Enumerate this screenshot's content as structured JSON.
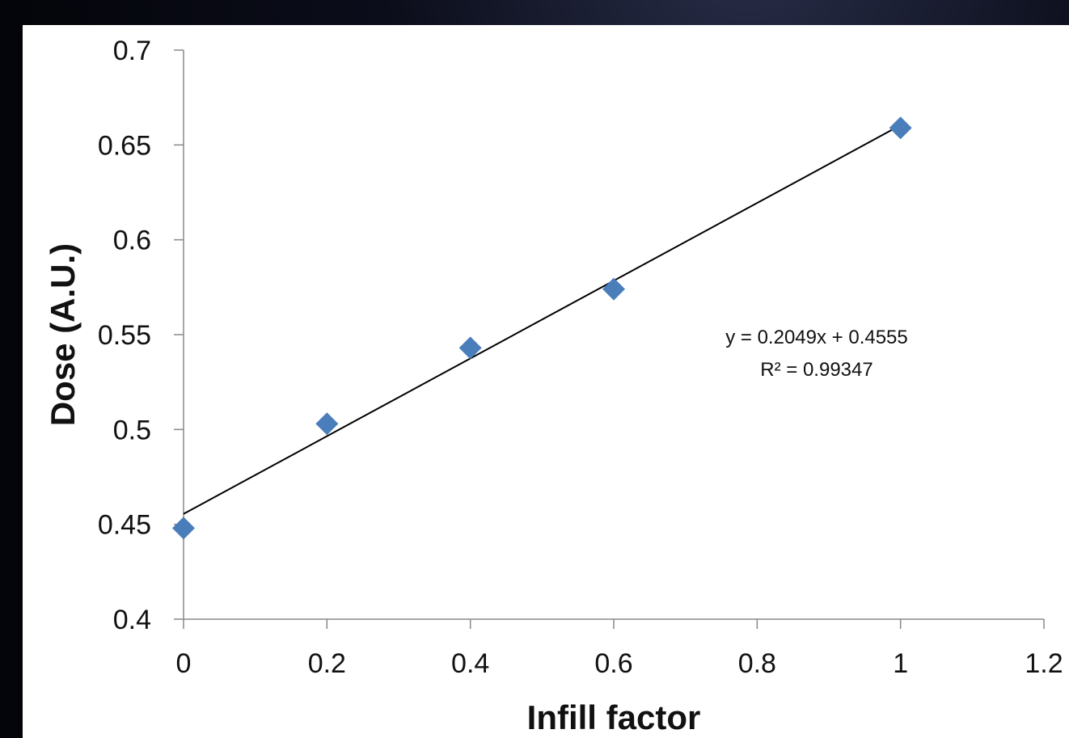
{
  "chart_data": {
    "type": "scatter",
    "xlabel": "Infill factor",
    "ylabel": "Dose (A.U.)",
    "xlim": [
      0,
      1.2
    ],
    "ylim": [
      0.4,
      0.7
    ],
    "x_ticks": [
      "0",
      "0.2",
      "0.4",
      "0.6",
      "0.8",
      "1",
      "1.2"
    ],
    "y_ticks": [
      "0.4",
      "0.45",
      "0.5",
      "0.55",
      "0.6",
      "0.65",
      "0.7"
    ],
    "grid": false,
    "series": [
      {
        "marker": "diamond",
        "color": "#4a7ebb",
        "x": [
          0,
          0.2,
          0.4,
          0.6,
          1.0
        ],
        "y": [
          0.448,
          0.503,
          0.543,
          0.574,
          0.659
        ]
      }
    ],
    "trendline": {
      "type": "linear",
      "slope": 0.2049,
      "intercept": 0.4555,
      "x_range": [
        0,
        1.0
      ],
      "color": "#000000"
    },
    "annotations": [
      "y = 0.2049x + 0.4555",
      "R² = 0.99347"
    ]
  }
}
